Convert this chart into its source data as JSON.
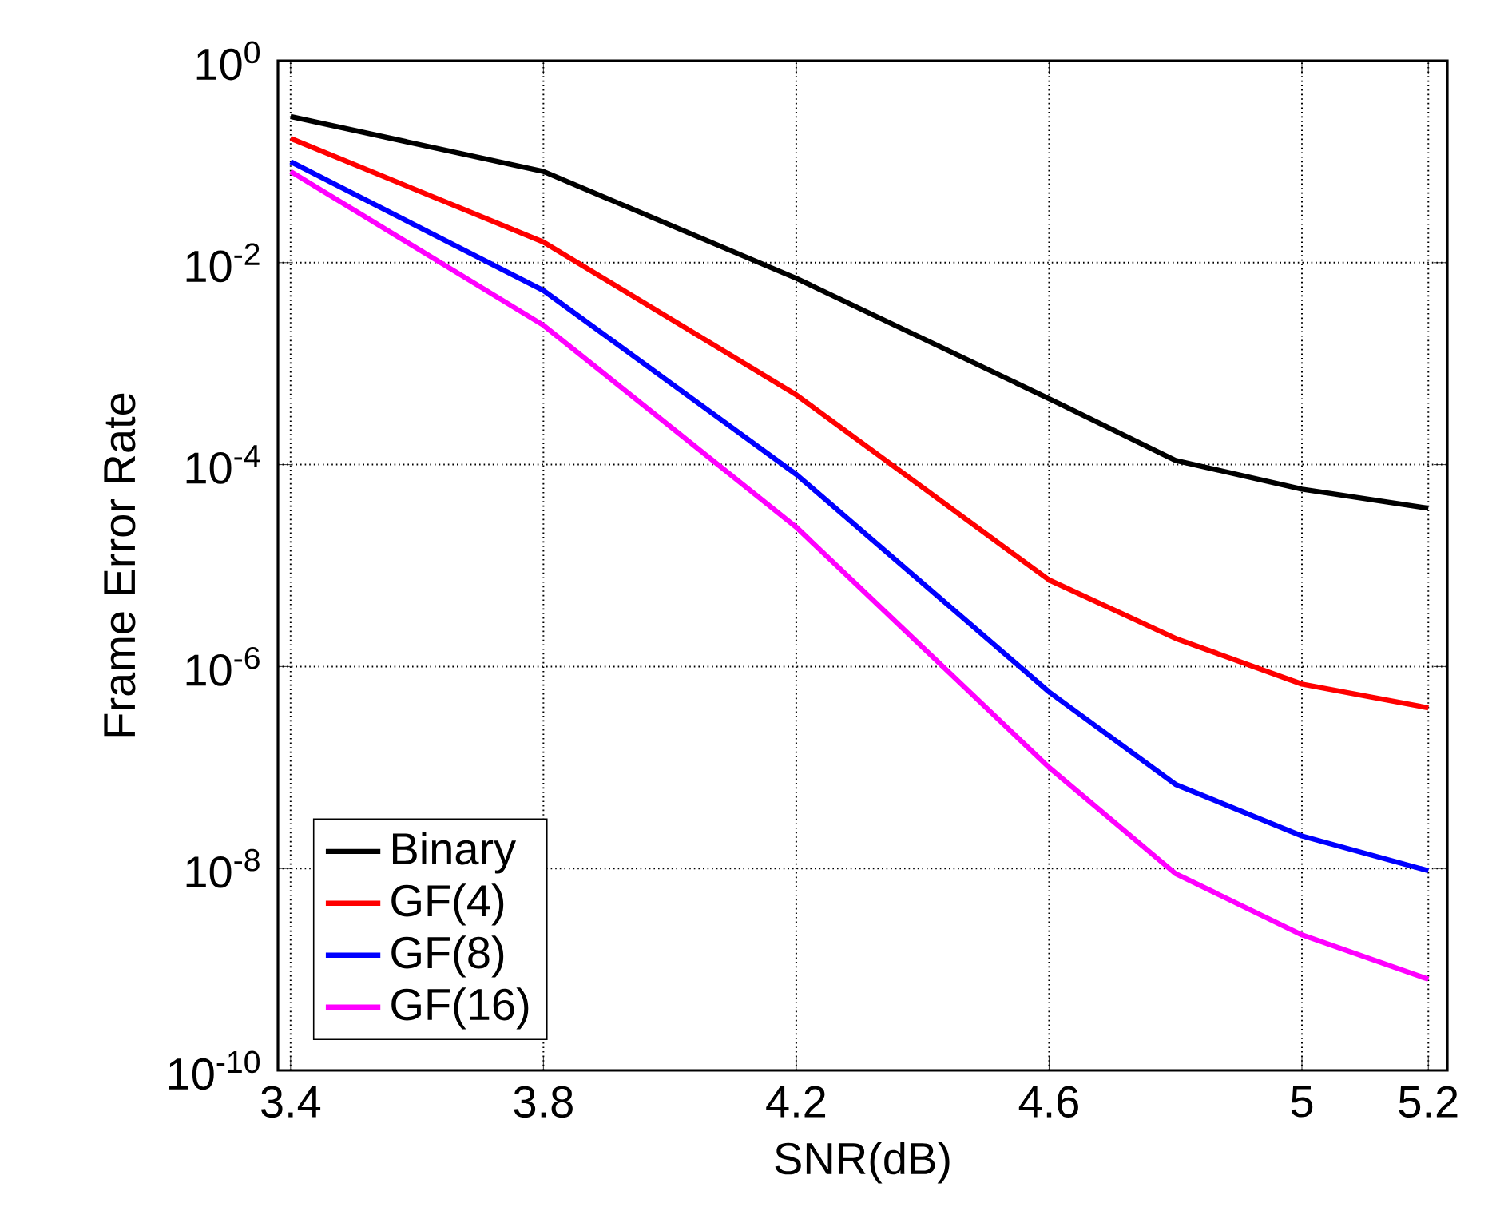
{
  "chart_data": {
    "type": "line",
    "xlabel": "SNR(dB)",
    "ylabel": "Frame Error Rate",
    "x": [
      3.4,
      3.8,
      4.2,
      4.6,
      4.8,
      5.0,
      5.2
    ],
    "series": [
      {
        "name": "Binary",
        "color": "#000000",
        "values": [
          0.28,
          0.08,
          0.007,
          0.00045,
          0.00011,
          5.7e-05,
          3.7e-05
        ]
      },
      {
        "name": "GF(4)",
        "color": "#ff0000",
        "values": [
          0.17,
          0.016,
          0.00049,
          7.2e-06,
          1.9e-06,
          6.7e-07,
          3.9e-07
        ]
      },
      {
        "name": "GF(8)",
        "color": "#0000ff",
        "values": [
          0.1,
          0.0053,
          8e-05,
          5.6e-07,
          6.8e-08,
          2.1e-08,
          9.5e-09
        ]
      },
      {
        "name": "GF(16)",
        "color": "#ff00ff",
        "values": [
          0.08,
          0.0024,
          2.4e-05,
          1e-07,
          8.9e-09,
          2.2e-09,
          8e-10
        ]
      }
    ],
    "xlim": [
      3.38,
      5.23
    ],
    "ylim": [
      1e-10,
      1
    ],
    "xticks": [
      3.4,
      3.8,
      4.2,
      4.6,
      5,
      5.2
    ],
    "yticks": [
      {
        "value": 1,
        "label": "10$^{0}$"
      },
      {
        "value": 0.01,
        "label": "10$^{-2}$"
      },
      {
        "value": 0.0001,
        "label": "10$^{-4}$"
      },
      {
        "value": 1e-06,
        "label": "10$^{-6}$"
      },
      {
        "value": 1e-08,
        "label": "10$^{-8}$"
      },
      {
        "value": 1e-10,
        "label": "10$^{-10}$"
      }
    ],
    "log": "y",
    "grid": true,
    "legend": "bottom left",
    "marker": "none",
    "line_style": "solid"
  }
}
